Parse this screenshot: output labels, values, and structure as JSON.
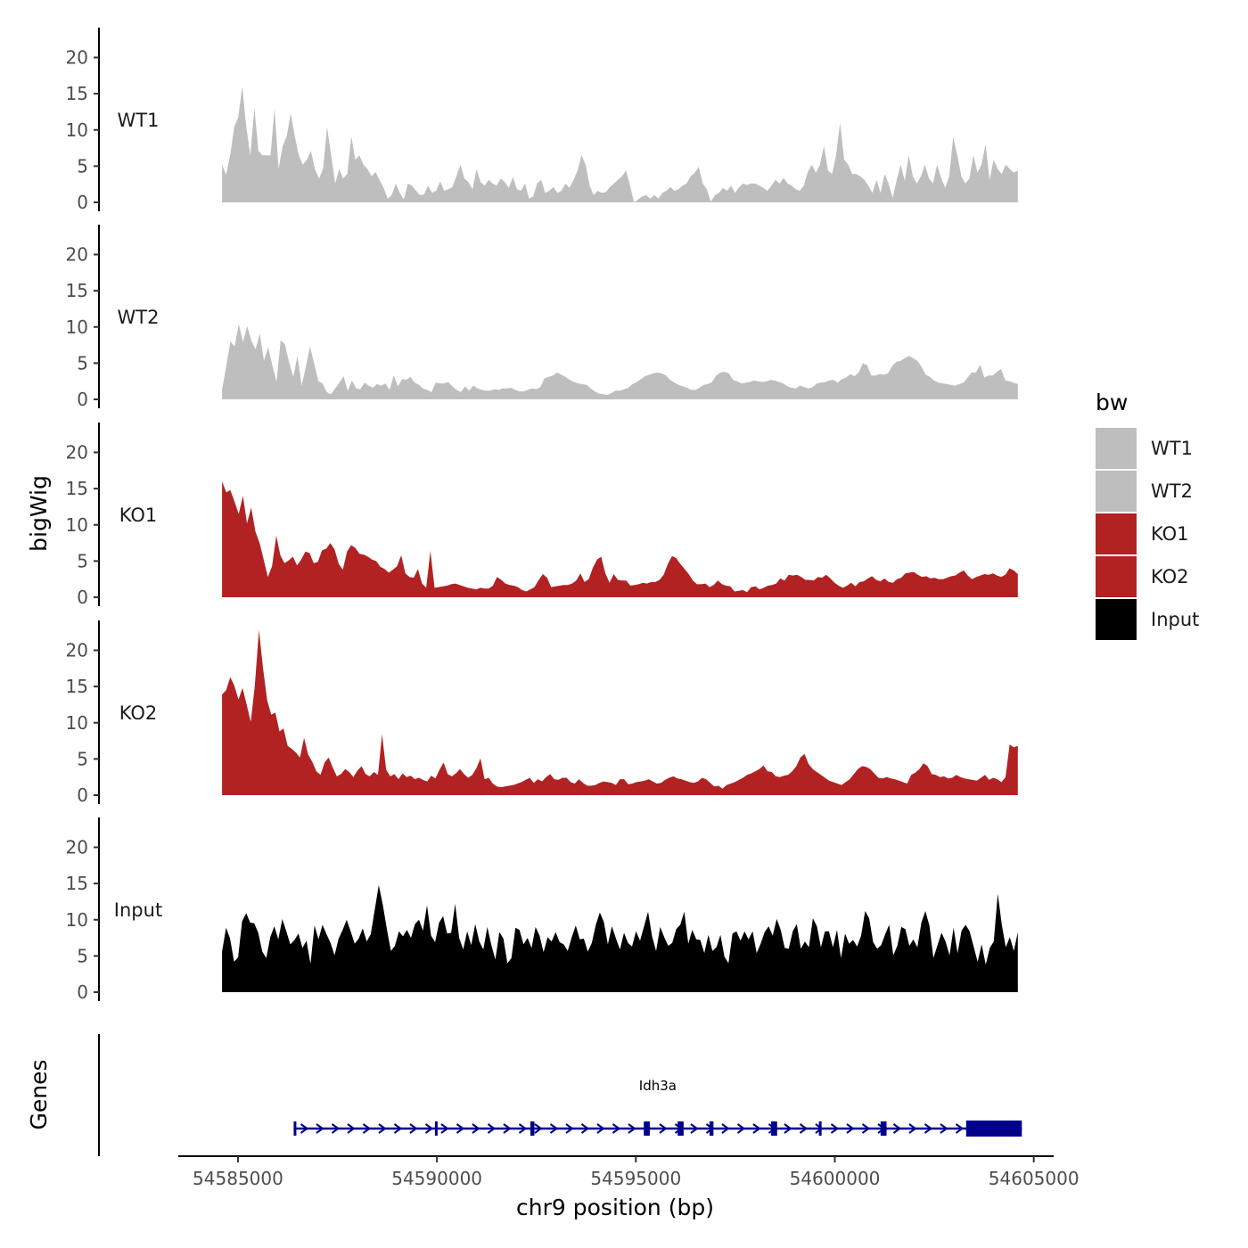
{
  "chart_data": {
    "type": "area",
    "title": "",
    "xlabel": "chr9 position (bp)",
    "ylabel": "bigWig",
    "genes_label": "Genes",
    "xlim": [
      54583500,
      54605500
    ],
    "ylim": [
      0,
      24
    ],
    "x_ticks": [
      54585000,
      54590000,
      54595000,
      54600000,
      54605000
    ],
    "x_tick_labels": [
      "54585000",
      "54590000",
      "54595000",
      "54600000",
      "54605000"
    ],
    "y_ticks": [
      0,
      5,
      10,
      15,
      20
    ],
    "y_tick_labels": [
      "0",
      "5",
      "10",
      "15",
      "20"
    ],
    "track_start": 54584600,
    "track_end": 54604600,
    "legend": {
      "title": "bw",
      "position": "right",
      "items": [
        {
          "label": "WT1",
          "color": "#bebebe"
        },
        {
          "label": "WT2",
          "color": "#bebebe"
        },
        {
          "label": "KO1",
          "color": "#b22222"
        },
        {
          "label": "KO2",
          "color": "#b22222"
        },
        {
          "label": "Input",
          "color": "#000000"
        }
      ]
    },
    "series": [
      {
        "name": "WT1",
        "color": "#bebebe",
        "values": [
          5.2,
          3.8,
          6.5,
          10.4,
          11.7,
          16.0,
          10.4,
          6.5,
          13.0,
          7.1,
          6.5,
          6.5,
          6.5,
          13.0,
          4.6,
          7.8,
          9.1,
          12.3,
          9.1,
          6.5,
          5.2,
          5.9,
          7.1,
          4.6,
          3.3,
          4.6,
          10.4,
          6.5,
          2.6,
          4.6,
          3.3,
          3.9,
          9.1,
          5.9,
          6.5,
          5.2,
          4.6,
          3.6,
          4.2,
          3.1,
          2.0,
          0.5,
          1.0,
          2.6,
          1.3,
          0.4,
          2.6,
          2.3,
          1.6,
          1.0,
          1.1,
          2.3,
          1.3,
          1.6,
          2.9,
          1.6,
          1.8,
          2.1,
          3.6,
          5.2,
          3.3,
          2.8,
          1.8,
          4.6,
          2.8,
          2.3,
          3.1,
          2.6,
          2.3,
          3.3,
          2.8,
          2.0,
          3.5,
          1.8,
          1.6,
          2.6,
          0.5,
          0.8,
          2.6,
          3.1,
          1.3,
          1.6,
          2.1,
          1.3,
          1.6,
          2.6,
          2.0,
          3.1,
          4.4,
          6.5,
          5.2,
          2.3,
          1.0,
          1.6,
          1.3,
          1.4,
          2.1,
          2.6,
          3.1,
          3.6,
          4.4,
          2.3,
          0.0,
          0.4,
          0.8,
          1.0,
          0.5,
          1.0,
          0.5,
          1.3,
          1.6,
          2.1,
          1.6,
          1.8,
          2.3,
          2.6,
          3.6,
          4.1,
          4.9,
          2.6,
          1.8,
          0.1,
          1.0,
          1.3,
          2.0,
          1.6,
          2.3,
          1.3,
          2.1,
          2.6,
          2.4,
          2.6,
          2.6,
          2.3,
          2.0,
          1.6,
          2.3,
          3.1,
          2.6,
          3.4,
          2.6,
          2.3,
          1.8,
          1.6,
          2.3,
          4.2,
          5.2,
          4.1,
          5.2,
          7.8,
          4.4,
          3.9,
          6.5,
          11.0,
          5.9,
          5.2,
          3.9,
          3.9,
          3.6,
          3.1,
          2.3,
          1.3,
          3.1,
          1.3,
          3.9,
          2.6,
          0.6,
          3.1,
          5.2,
          3.0,
          6.5,
          3.6,
          2.6,
          3.6,
          5.2,
          3.3,
          2.6,
          5.2,
          3.4,
          2.0,
          3.6,
          9.0,
          6.5,
          3.6,
          2.6,
          3.3,
          6.5,
          4.1,
          5.2,
          8.0,
          3.1,
          5.9,
          4.6,
          3.9,
          5.2,
          4.6,
          4.1,
          4.4
        ]
      },
      {
        "name": "WT2",
        "color": "#bebebe",
        "values": [
          1.3,
          4.6,
          8.0,
          7.3,
          10.4,
          7.9,
          10.1,
          8.1,
          6.9,
          9.1,
          5.3,
          7.2,
          4.7,
          2.4,
          8.2,
          7.6,
          5.1,
          3.1,
          6.0,
          1.9,
          4.5,
          7.3,
          4.9,
          2.5,
          2.2,
          1.0,
          0.7,
          1.5,
          2.3,
          3.2,
          1.2,
          2.6,
          1.5,
          1.4,
          2.3,
          1.9,
          1.6,
          2.1,
          1.9,
          2.2,
          1.3,
          3.3,
          1.8,
          2.8,
          2.7,
          3.1,
          2.3,
          2.0,
          1.5,
          1.3,
          1.0,
          2.3,
          2.2,
          2.2,
          2.4,
          1.8,
          1.3,
          1.0,
          1.8,
          1.2,
          1.9,
          1.5,
          1.3,
          1.2,
          1.2,
          1.4,
          1.3,
          1.5,
          1.5,
          1.6,
          1.3,
          1.1,
          1.1,
          1.3,
          1.5,
          1.4,
          1.7,
          2.9,
          3.1,
          3.3,
          3.7,
          3.4,
          3.1,
          2.7,
          2.4,
          2.2,
          2.1,
          2.0,
          1.5,
          1.1,
          0.8,
          0.7,
          0.6,
          0.9,
          1.2,
          1.2,
          1.4,
          1.6,
          2.1,
          2.4,
          2.8,
          3.2,
          3.4,
          3.6,
          3.7,
          3.6,
          3.3,
          2.7,
          2.3,
          2.0,
          1.8,
          1.6,
          1.3,
          1.3,
          1.6,
          2.0,
          2.1,
          2.4,
          3.3,
          3.7,
          3.8,
          3.6,
          2.7,
          2.5,
          2.2,
          2.3,
          2.4,
          2.6,
          2.5,
          2.4,
          2.5,
          2.7,
          2.6,
          2.4,
          2.2,
          1.8,
          1.6,
          1.5,
          1.9,
          1.7,
          1.5,
          1.7,
          2.2,
          2.3,
          2.4,
          2.6,
          2.7,
          2.3,
          2.8,
          3.0,
          3.5,
          3.2,
          3.7,
          5.0,
          4.7,
          3.3,
          3.3,
          3.5,
          3.4,
          3.6,
          4.6,
          5.2,
          5.3,
          5.7,
          6.0,
          5.7,
          5.3,
          4.5,
          3.4,
          3.1,
          2.6,
          2.3,
          2.2,
          2.1,
          2.0,
          1.9,
          2.1,
          2.3,
          3.0,
          3.7,
          3.7,
          4.8,
          3.0,
          3.3,
          3.3,
          3.8,
          4.2,
          2.6,
          2.5,
          2.3,
          2.1
        ]
      },
      {
        "name": "KO1",
        "color": "#b22222",
        "values": [
          16.0,
          14.5,
          14.8,
          13.2,
          11.5,
          14.0,
          10.2,
          12.4,
          9.1,
          7.5,
          5.2,
          2.8,
          4.3,
          8.5,
          5.8,
          4.7,
          5.1,
          5.6,
          4.4,
          5.2,
          6.3,
          6.1,
          4.7,
          4.9,
          6.5,
          6.7,
          7.5,
          6.6,
          4.6,
          3.8,
          6.3,
          7.2,
          6.8,
          6.0,
          5.9,
          5.6,
          5.2,
          5.0,
          4.2,
          3.9,
          3.4,
          3.8,
          4.3,
          5.8,
          3.3,
          2.8,
          2.7,
          3.9,
          1.9,
          1.3,
          6.4,
          1.3,
          1.4,
          1.5,
          1.6,
          1.8,
          1.9,
          1.7,
          1.5,
          1.3,
          1.2,
          1.1,
          1.3,
          1.2,
          1.2,
          1.6,
          2.8,
          2.4,
          1.9,
          1.7,
          1.6,
          1.4,
          1.0,
          0.8,
          1.1,
          1.4,
          2.4,
          3.2,
          2.7,
          1.4,
          1.5,
          1.6,
          1.7,
          1.7,
          1.9,
          2.3,
          3.3,
          2.1,
          2.5,
          4.1,
          5.2,
          5.6,
          3.3,
          2.0,
          3.2,
          2.4,
          2.3,
          2.3,
          1.6,
          1.7,
          1.8,
          2.0,
          1.9,
          2.1,
          2.1,
          2.4,
          3.1,
          4.6,
          5.7,
          5.4,
          4.6,
          3.9,
          3.2,
          2.3,
          1.8,
          1.8,
          1.9,
          1.4,
          1.7,
          2.3,
          1.8,
          1.6,
          1.5,
          0.8,
          0.9,
          1.0,
          0.7,
          1.4,
          1.5,
          1.1,
          1.3,
          1.6,
          1.7,
          1.9,
          2.6,
          2.3,
          3.1,
          3.0,
          3.1,
          2.8,
          2.4,
          2.4,
          2.3,
          2.8,
          2.7,
          3.1,
          2.6,
          2.0,
          1.6,
          1.3,
          1.6,
          2.0,
          1.5,
          2.1,
          2.2,
          2.6,
          2.9,
          2.4,
          2.2,
          2.6,
          2.1,
          2.0,
          2.5,
          2.7,
          3.3,
          3.4,
          3.5,
          3.1,
          2.8,
          2.9,
          2.6,
          2.7,
          2.5,
          2.5,
          2.7,
          2.9,
          3.0,
          3.4,
          3.7,
          3.0,
          2.5,
          2.8,
          3.0,
          3.2,
          3.1,
          3.3,
          3.0,
          2.8,
          3.1,
          4.0,
          3.7,
          3.2
        ]
      },
      {
        "name": "KO2",
        "color": "#b22222",
        "values": [
          13.9,
          14.5,
          16.3,
          15.1,
          13.2,
          14.8,
          12.5,
          10.1,
          15.2,
          22.8,
          17.5,
          13.1,
          11.1,
          11.4,
          8.8,
          9.2,
          6.8,
          6.4,
          5.9,
          5.2,
          7.9,
          5.6,
          4.6,
          3.3,
          2.8,
          4.5,
          5.2,
          3.8,
          2.6,
          2.9,
          3.6,
          3.2,
          2.5,
          3.4,
          4.0,
          2.9,
          2.6,
          3.2,
          2.8,
          8.4,
          3.5,
          2.6,
          2.9,
          2.2,
          3.0,
          2.5,
          2.7,
          2.2,
          2.4,
          2.1,
          1.9,
          2.7,
          2.3,
          3.5,
          4.5,
          2.9,
          2.6,
          3.0,
          3.6,
          2.9,
          2.4,
          2.8,
          3.7,
          5.1,
          2.2,
          2.4,
          1.6,
          1.2,
          1.1,
          1.2,
          1.3,
          1.4,
          1.6,
          1.8,
          2.1,
          2.4,
          1.7,
          2.2,
          1.9,
          2.5,
          2.9,
          2.2,
          2.1,
          2.4,
          2.4,
          1.8,
          1.6,
          2.2,
          1.7,
          1.3,
          1.3,
          1.4,
          1.7,
          1.9,
          1.8,
          1.7,
          1.4,
          2.2,
          2.2,
          1.5,
          1.6,
          1.8,
          1.9,
          2.0,
          2.2,
          1.9,
          1.6,
          1.7,
          2.1,
          2.4,
          2.6,
          2.3,
          2.2,
          2.0,
          1.8,
          1.7,
          1.9,
          2.4,
          2.2,
          1.7,
          1.2,
          1.3,
          0.9,
          1.4,
          1.6,
          1.8,
          2.1,
          2.4,
          2.8,
          3.0,
          3.3,
          3.6,
          4.1,
          3.3,
          3.2,
          2.6,
          2.5,
          2.7,
          2.8,
          3.3,
          4.0,
          5.2,
          5.7,
          4.3,
          3.6,
          3.2,
          2.8,
          2.4,
          2.0,
          1.8,
          1.6,
          1.4,
          1.8,
          2.2,
          2.9,
          3.6,
          4.0,
          3.9,
          3.6,
          3.0,
          2.4,
          2.3,
          2.5,
          2.3,
          2.2,
          2.0,
          1.8,
          1.6,
          2.8,
          3.1,
          3.6,
          4.4,
          4.0,
          2.9,
          2.8,
          2.5,
          2.6,
          2.3,
          2.4,
          2.8,
          2.5,
          2.3,
          2.2,
          2.1,
          2.0,
          2.4,
          2.8,
          2.1,
          2.4,
          2.2,
          1.8,
          2.5,
          7.0,
          6.6,
          6.8
        ]
      },
      {
        "name": "Input",
        "color": "#000000",
        "values": [
          5.6,
          8.9,
          7.4,
          4.2,
          4.8,
          9.8,
          10.9,
          9.6,
          9.5,
          8.2,
          5.6,
          4.7,
          7.6,
          9.1,
          7.3,
          10.1,
          8.4,
          6.6,
          7.2,
          8.1,
          6.1,
          7.1,
          3.9,
          9.2,
          7.3,
          9.3,
          8.0,
          6.8,
          5.1,
          7.4,
          8.6,
          10.0,
          8.4,
          6.7,
          7.4,
          8.8,
          7.0,
          8.0,
          11.4,
          14.8,
          12.1,
          8.7,
          5.7,
          6.4,
          8.4,
          7.7,
          8.6,
          7.5,
          9.4,
          10.0,
          8.5,
          12.0,
          7.8,
          6.9,
          9.6,
          10.5,
          8.1,
          8.2,
          12.2,
          7.5,
          5.9,
          8.4,
          6.5,
          9.4,
          7.0,
          5.9,
          9.0,
          6.5,
          4.5,
          8.3,
          7.4,
          4.0,
          4.7,
          8.9,
          8.6,
          6.6,
          7.5,
          6.1,
          9.0,
          7.8,
          5.5,
          7.6,
          7.0,
          8.3,
          6.9,
          6.6,
          5.7,
          7.6,
          9.2,
          7.3,
          7.4,
          5.6,
          6.8,
          9.3,
          11.0,
          9.7,
          6.6,
          9.1,
          7.4,
          5.9,
          8.2,
          6.8,
          6.3,
          8.4,
          7.1,
          9.1,
          11.1,
          7.7,
          5.7,
          9.0,
          7.6,
          6.4,
          6.8,
          8.7,
          9.3,
          11.1,
          6.7,
          8.6,
          7.3,
          7.2,
          5.4,
          7.9,
          5.7,
          6.2,
          7.9,
          4.9,
          4.0,
          8.1,
          8.4,
          7.1,
          8.4,
          7.3,
          8.4,
          5.4,
          6.7,
          8.3,
          9.1,
          7.8,
          10.1,
          8.6,
          6.1,
          6.0,
          8.4,
          9.4,
          6.0,
          7.0,
          6.2,
          10.2,
          9.1,
          6.2,
          8.4,
          8.4,
          6.2,
          8.6,
          4.7,
          8.1,
          6.7,
          7.2,
          6.3,
          7.8,
          11.2,
          10.2,
          6.9,
          6.0,
          6.5,
          8.0,
          9.3,
          5.1,
          6.4,
          9.0,
          8.7,
          6.4,
          7.3,
          6.2,
          9.6,
          11.2,
          9.2,
          4.7,
          6.5,
          8.2,
          7.0,
          5.1,
          8.9,
          5.4,
          8.5,
          9.3,
          8.4,
          6.3,
          4.2,
          6.6,
          3.8,
          6.1,
          7.0,
          13.6,
          9.3,
          6.2,
          7.6,
          5.7,
          8.3
        ]
      }
    ],
    "gene": {
      "name": "Idh3a",
      "color": "#00008b",
      "start": 54586400,
      "end": 54604700,
      "exons": [
        {
          "start": 54586400,
          "end": 54586450
        },
        {
          "start": 54589950,
          "end": 54590000
        },
        {
          "start": 54592350,
          "end": 54592450
        },
        {
          "start": 54595200,
          "end": 54595350
        },
        {
          "start": 54596050,
          "end": 54596200
        },
        {
          "start": 54596850,
          "end": 54596950
        },
        {
          "start": 54598400,
          "end": 54598550
        },
        {
          "start": 54599600,
          "end": 54599650
        },
        {
          "start": 54601150,
          "end": 54601300
        },
        {
          "start": 54603300,
          "end": 54604700
        }
      ]
    }
  }
}
